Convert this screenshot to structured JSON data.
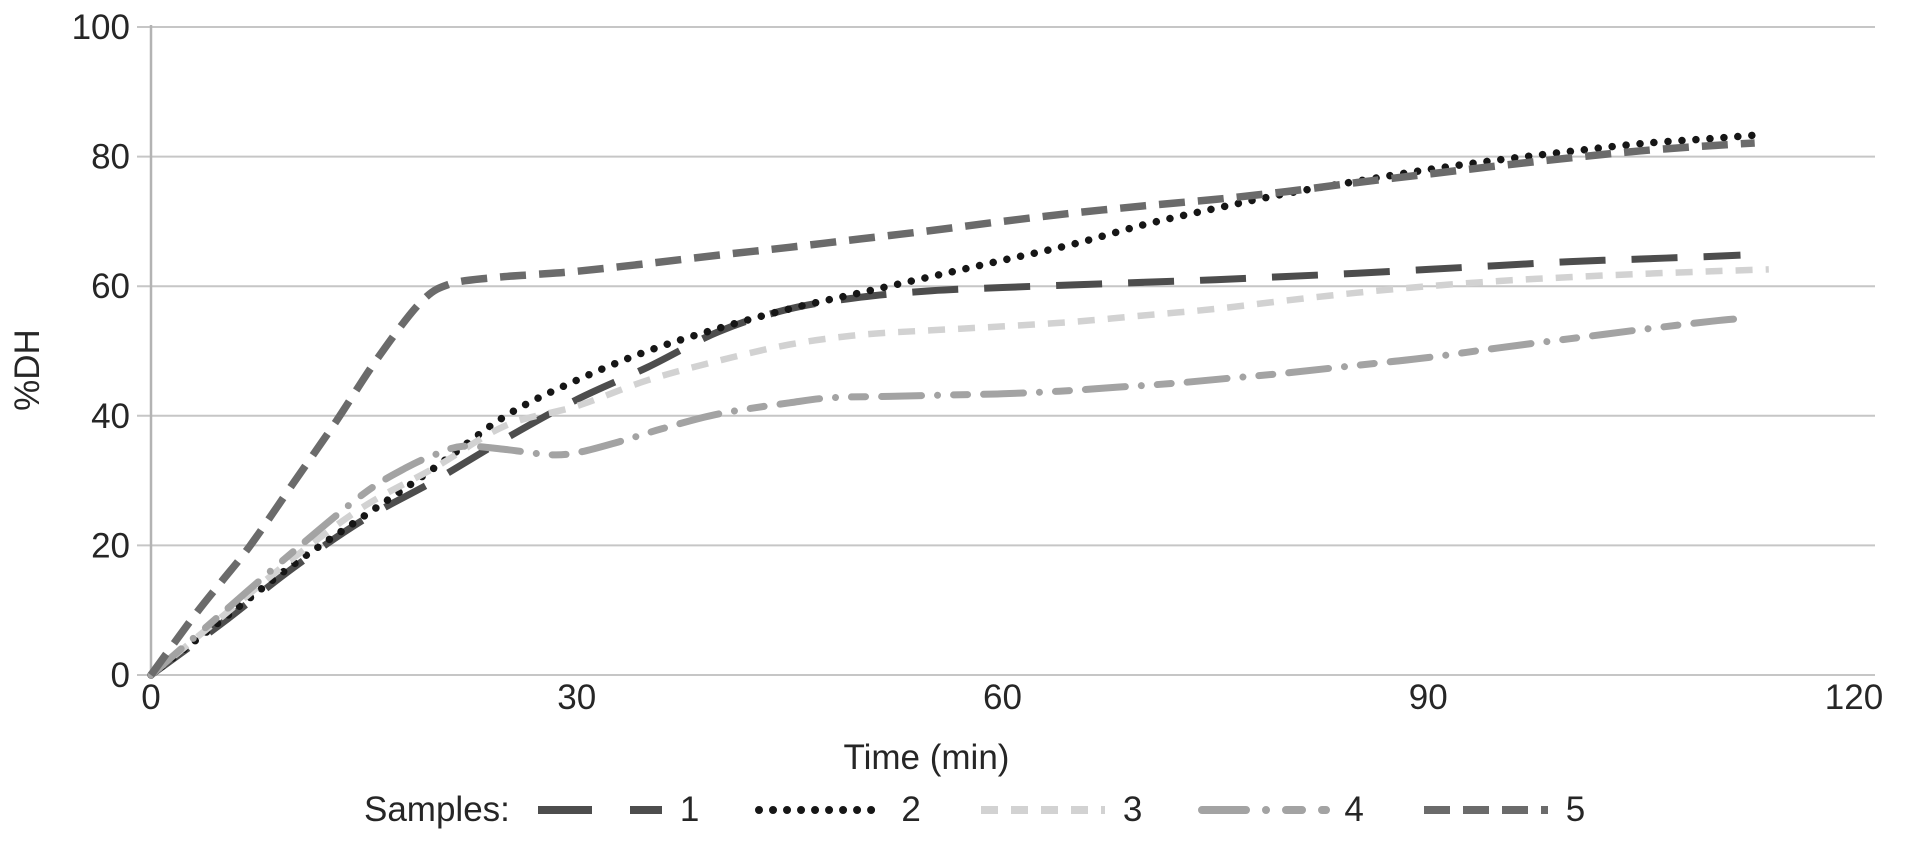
{
  "chart_data": {
    "type": "line",
    "title": "",
    "xlabel": "Time (min)",
    "ylabel": "%DH",
    "xlim": [
      0,
      120
    ],
    "ylim": [
      0,
      100
    ],
    "xticks": [
      0,
      30,
      60,
      90,
      120
    ],
    "yticks": [
      0,
      20,
      40,
      60,
      80,
      100
    ],
    "grid": "horizontal",
    "grid_color": "#c6c6c6",
    "axis_color": "#b3b3b3",
    "text_color": "#262626",
    "legend": {
      "label": "Samples:",
      "position": "bottom"
    },
    "series": [
      {
        "name": "1",
        "style": "long-dash",
        "color": "#4d4d4d",
        "dash": "46 26",
        "legend_dash": "54 38",
        "width": 7,
        "cap": "butt",
        "points": [
          [
            0,
            0
          ],
          [
            5,
            8
          ],
          [
            10,
            16.5
          ],
          [
            15,
            24
          ],
          [
            20,
            30
          ],
          [
            25,
            36.5
          ],
          [
            30,
            42.5
          ],
          [
            35,
            47.5
          ],
          [
            40,
            53
          ],
          [
            45,
            56.5
          ],
          [
            50,
            58.3
          ],
          [
            55,
            59.3
          ],
          [
            60,
            59.8
          ],
          [
            65,
            60.2
          ],
          [
            70,
            60.6
          ],
          [
            75,
            61
          ],
          [
            80,
            61.5
          ],
          [
            85,
            62
          ],
          [
            90,
            62.6
          ],
          [
            95,
            63.2
          ],
          [
            100,
            63.8
          ],
          [
            105,
            64.2
          ],
          [
            110,
            64.6
          ],
          [
            112,
            64.8
          ]
        ]
      },
      {
        "name": "2",
        "style": "dotted",
        "color": "#161616",
        "dash": "0.01 14",
        "legend_dash": "0.01 14",
        "width": 7.5,
        "cap": "round",
        "points": [
          [
            0,
            0
          ],
          [
            5,
            8.5
          ],
          [
            10,
            17
          ],
          [
            15,
            24.5
          ],
          [
            20,
            32
          ],
          [
            25,
            40
          ],
          [
            30,
            45.5
          ],
          [
            35,
            50
          ],
          [
            40,
            53.5
          ],
          [
            45,
            56.5
          ],
          [
            50,
            59
          ],
          [
            55,
            61.5
          ],
          [
            60,
            64
          ],
          [
            65,
            66.5
          ],
          [
            70,
            69.5
          ],
          [
            75,
            72
          ],
          [
            80,
            74.3
          ],
          [
            85,
            76.2
          ],
          [
            90,
            78
          ],
          [
            95,
            79.5
          ],
          [
            100,
            80.8
          ],
          [
            105,
            82
          ],
          [
            110,
            82.8
          ],
          [
            113,
            83.3
          ]
        ]
      },
      {
        "name": "3",
        "style": "short-dash",
        "color": "#d2d2d2",
        "dash": "17 13",
        "legend_dash": "17 13",
        "width": 6.5,
        "cap": "butt",
        "points": [
          [
            0,
            0
          ],
          [
            5,
            9
          ],
          [
            10,
            18
          ],
          [
            15,
            26
          ],
          [
            20,
            32
          ],
          [
            25,
            38.5
          ],
          [
            30,
            41.5
          ],
          [
            35,
            45.5
          ],
          [
            40,
            48.5
          ],
          [
            45,
            51
          ],
          [
            50,
            52.5
          ],
          [
            55,
            53.2
          ],
          [
            60,
            53.8
          ],
          [
            65,
            54.5
          ],
          [
            70,
            55.5
          ],
          [
            75,
            56.5
          ],
          [
            80,
            57.8
          ],
          [
            85,
            59
          ],
          [
            90,
            60
          ],
          [
            95,
            60.8
          ],
          [
            100,
            61.4
          ],
          [
            105,
            61.9
          ],
          [
            110,
            62.3
          ],
          [
            114,
            62.6
          ]
        ]
      },
      {
        "name": "4",
        "style": "dash-dot-dash",
        "color": "#a3a3a3",
        "dash": "40 16 0.01 16 14 16",
        "legend_dash": "44 20 0.01 20 16 20",
        "width": 7,
        "cap": "round",
        "points": [
          [
            0,
            0
          ],
          [
            5,
            9.5
          ],
          [
            10,
            19
          ],
          [
            15,
            28
          ],
          [
            18,
            32
          ],
          [
            20,
            34
          ],
          [
            22,
            35.3
          ],
          [
            25,
            34.8
          ],
          [
            28,
            34
          ],
          [
            30,
            34.3
          ],
          [
            33,
            36
          ],
          [
            36,
            38
          ],
          [
            40,
            40.3
          ],
          [
            45,
            42
          ],
          [
            48,
            42.8
          ],
          [
            52,
            43
          ],
          [
            56,
            43.2
          ],
          [
            60,
            43.4
          ],
          [
            64,
            43.8
          ],
          [
            68,
            44.4
          ],
          [
            72,
            45
          ],
          [
            76,
            45.8
          ],
          [
            80,
            46.6
          ],
          [
            85,
            47.8
          ],
          [
            90,
            49
          ],
          [
            95,
            50.5
          ],
          [
            100,
            51.9
          ],
          [
            105,
            53.3
          ],
          [
            110,
            54.6
          ],
          [
            112,
            55
          ]
        ]
      },
      {
        "name": "5",
        "style": "medium-dash",
        "color": "#6b6b6b",
        "dash": "26 13",
        "legend_dash": "26 13",
        "width": 7.5,
        "cap": "butt",
        "points": [
          [
            0,
            0
          ],
          [
            3,
            9
          ],
          [
            5,
            14.5
          ],
          [
            7,
            20
          ],
          [
            10,
            29.5
          ],
          [
            13,
            39
          ],
          [
            16,
            49
          ],
          [
            19,
            57.5
          ],
          [
            21,
            60.3
          ],
          [
            24,
            61.3
          ],
          [
            27,
            61.8
          ],
          [
            30,
            62.3
          ],
          [
            35,
            63.5
          ],
          [
            40,
            64.8
          ],
          [
            45,
            66
          ],
          [
            50,
            67.3
          ],
          [
            55,
            68.6
          ],
          [
            60,
            70
          ],
          [
            65,
            71.3
          ],
          [
            70,
            72.4
          ],
          [
            75,
            73.4
          ],
          [
            80,
            74.6
          ],
          [
            85,
            76
          ],
          [
            90,
            77.3
          ],
          [
            95,
            78.6
          ],
          [
            100,
            79.8
          ],
          [
            105,
            80.9
          ],
          [
            110,
            81.7
          ],
          [
            113,
            82.1
          ]
        ]
      }
    ]
  }
}
